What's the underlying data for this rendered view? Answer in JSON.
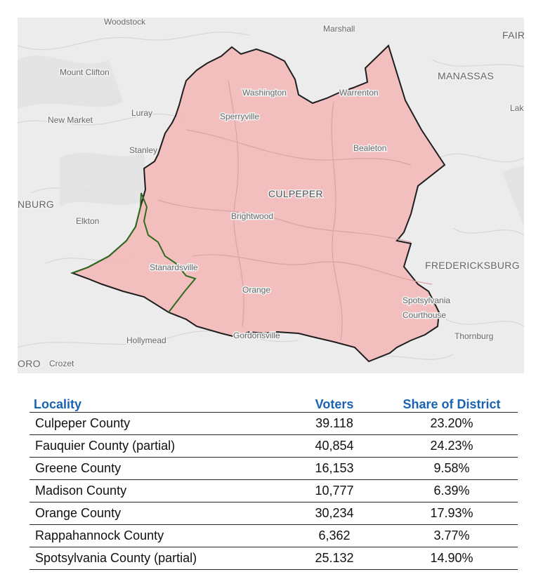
{
  "map": {
    "colors": {
      "background": "#ececec",
      "district_fill": "#f3b6b6",
      "district_border": "#1e1e1e",
      "subboundary": "#2f6b1f",
      "roads": "#d2d2d2"
    },
    "labels": {
      "woodstock": "Woodstock",
      "marshall": "Marshall",
      "fair": "FAIR",
      "mount_clifton": "Mount Clifton",
      "manassas": "MANASSAS",
      "washington": "Washington",
      "warrenton": "Warrenton",
      "lak": "Lak",
      "luray": "Luray",
      "new_market": "New Market",
      "sperryville": "Sperryville",
      "stanley": "Stanley",
      "bealeton": "Bealeton",
      "culpeper": "CULPEPER",
      "nburg": "NBURG",
      "brightwood": "Brightwood",
      "elkton": "Elkton",
      "stanardsville": "Stanardsville",
      "fredericksburg": "FREDERICKSBURG",
      "orange": "Orange",
      "spotsylvania": "Spotsylvania",
      "courthouse": "Courthouse",
      "hollymead": "Hollymead",
      "gordonsville": "Gordonsville",
      "thornburg": "Thornburg",
      "oro": "ORO",
      "crozet": "Crozet"
    }
  },
  "table": {
    "headers": [
      "Locality",
      "Voters",
      "Share of District"
    ],
    "header_color": "#1a63b3",
    "rows": [
      {
        "locality": "Culpeper County",
        "voters": "39.118",
        "share": "23.20%"
      },
      {
        "locality": "Fauquier County (partial)",
        "voters": "40,854",
        "share": "24.23%"
      },
      {
        "locality": "Greene County",
        "voters": "16,153",
        "share": "9.58%"
      },
      {
        "locality": "Madison County",
        "voters": "10,777",
        "share": "6.39%"
      },
      {
        "locality": "Orange County",
        "voters": "30,234",
        "share": "17.93%"
      },
      {
        "locality": "Rappahannock County",
        "voters": "6,362",
        "share": "3.77%"
      },
      {
        "locality": "Spotsylvania County (partial)",
        "voters": "25.132",
        "share": "14.90%"
      }
    ]
  }
}
